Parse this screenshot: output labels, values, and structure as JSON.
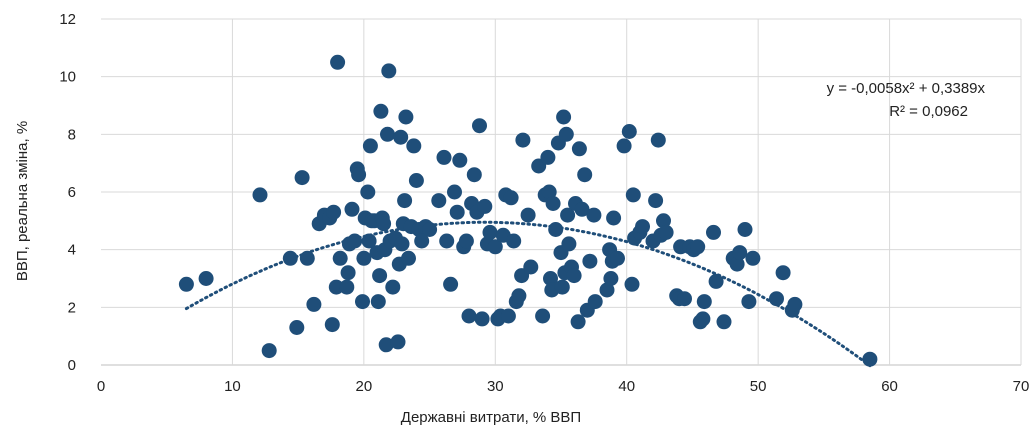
{
  "colors": {
    "point": "#1f4e79",
    "trend": "#1f4e79",
    "grid": "#d9d9d9"
  },
  "chart_data": {
    "type": "scatter",
    "title": "",
    "xlabel": "Державні витрати, % ВВП",
    "ylabel": "ВВП, реальна зміна, %",
    "xlim": [
      0,
      70
    ],
    "ylim": [
      0,
      12
    ],
    "xticks": [
      0,
      10,
      20,
      30,
      40,
      50,
      60,
      70
    ],
    "yticks": [
      0,
      2,
      4,
      6,
      8,
      10,
      12
    ],
    "xtick_labels": [
      "0",
      "10",
      "20",
      "30",
      "40",
      "50",
      "60",
      "70"
    ],
    "ytick_labels": [
      "0",
      "2",
      "4",
      "6",
      "8",
      "10",
      "12"
    ],
    "grid": true,
    "trendline": {
      "type": "polynomial-2",
      "a": -0.0058,
      "b": 0.3389,
      "x_range": [
        6.5,
        58.5
      ],
      "style": "dotted",
      "equation_text": "y = -0,0058x² + 0,3389x",
      "r2_text": "R² = 0,0962"
    },
    "points": [
      [
        6.5,
        2.8
      ],
      [
        8.0,
        3.0
      ],
      [
        12.1,
        5.9
      ],
      [
        12.8,
        0.5
      ],
      [
        14.4,
        3.7
      ],
      [
        14.9,
        1.3
      ],
      [
        15.3,
        6.5
      ],
      [
        15.7,
        3.7
      ],
      [
        16.2,
        2.1
      ],
      [
        16.6,
        4.9
      ],
      [
        17.0,
        5.2
      ],
      [
        17.4,
        5.1
      ],
      [
        17.6,
        1.4
      ],
      [
        17.7,
        5.3
      ],
      [
        17.9,
        2.7
      ],
      [
        18.0,
        10.5
      ],
      [
        18.2,
        3.7
      ],
      [
        18.7,
        2.7
      ],
      [
        18.8,
        3.2
      ],
      [
        18.9,
        4.2
      ],
      [
        19.1,
        5.4
      ],
      [
        19.3,
        4.3
      ],
      [
        19.5,
        6.8
      ],
      [
        19.6,
        6.6
      ],
      [
        19.9,
        2.2
      ],
      [
        20.0,
        3.7
      ],
      [
        20.1,
        5.1
      ],
      [
        20.3,
        6.0
      ],
      [
        20.4,
        4.3
      ],
      [
        20.5,
        7.6
      ],
      [
        20.6,
        5.0
      ],
      [
        20.8,
        5.0
      ],
      [
        21.0,
        3.9
      ],
      [
        21.1,
        2.2
      ],
      [
        21.2,
        3.1
      ],
      [
        21.3,
        8.8
      ],
      [
        21.4,
        5.1
      ],
      [
        21.5,
        4.9
      ],
      [
        21.6,
        4.0
      ],
      [
        21.7,
        0.7
      ],
      [
        21.8,
        8.0
      ],
      [
        21.9,
        10.2
      ],
      [
        22.0,
        4.3
      ],
      [
        22.2,
        2.7
      ],
      [
        22.4,
        4.4
      ],
      [
        22.6,
        0.8
      ],
      [
        22.7,
        3.5
      ],
      [
        22.8,
        7.9
      ],
      [
        22.9,
        4.2
      ],
      [
        23.0,
        4.9
      ],
      [
        23.1,
        5.7
      ],
      [
        23.2,
        8.6
      ],
      [
        23.4,
        3.7
      ],
      [
        23.6,
        4.8
      ],
      [
        23.8,
        7.6
      ],
      [
        24.0,
        6.4
      ],
      [
        24.2,
        4.7
      ],
      [
        24.4,
        4.3
      ],
      [
        24.7,
        4.8
      ],
      [
        25.0,
        4.7
      ],
      [
        25.7,
        5.7
      ],
      [
        26.1,
        7.2
      ],
      [
        26.3,
        4.3
      ],
      [
        26.6,
        2.8
      ],
      [
        26.9,
        6.0
      ],
      [
        27.1,
        5.3
      ],
      [
        27.3,
        7.1
      ],
      [
        27.6,
        4.1
      ],
      [
        27.8,
        4.3
      ],
      [
        28.0,
        1.7
      ],
      [
        28.2,
        5.6
      ],
      [
        28.4,
        6.6
      ],
      [
        28.6,
        5.3
      ],
      [
        28.8,
        8.3
      ],
      [
        29.0,
        1.6
      ],
      [
        29.2,
        5.5
      ],
      [
        29.4,
        4.2
      ],
      [
        29.6,
        4.6
      ],
      [
        30.0,
        4.1
      ],
      [
        30.2,
        1.6
      ],
      [
        30.4,
        1.7
      ],
      [
        30.6,
        4.5
      ],
      [
        30.8,
        5.9
      ],
      [
        31.0,
        1.7
      ],
      [
        31.2,
        5.8
      ],
      [
        31.4,
        4.3
      ],
      [
        31.6,
        2.2
      ],
      [
        31.8,
        2.4
      ],
      [
        32.0,
        3.1
      ],
      [
        32.1,
        7.8
      ],
      [
        32.5,
        5.2
      ],
      [
        32.7,
        3.4
      ],
      [
        33.3,
        6.9
      ],
      [
        33.6,
        1.7
      ],
      [
        33.8,
        5.9
      ],
      [
        34.0,
        7.2
      ],
      [
        34.1,
        6.0
      ],
      [
        34.2,
        3.0
      ],
      [
        34.3,
        2.6
      ],
      [
        34.4,
        5.6
      ],
      [
        34.6,
        4.7
      ],
      [
        34.8,
        7.7
      ],
      [
        35.0,
        3.9
      ],
      [
        35.1,
        2.7
      ],
      [
        35.2,
        8.6
      ],
      [
        35.3,
        3.2
      ],
      [
        35.4,
        8.0
      ],
      [
        35.5,
        5.2
      ],
      [
        35.6,
        4.2
      ],
      [
        35.8,
        3.4
      ],
      [
        36.0,
        3.1
      ],
      [
        36.1,
        5.6
      ],
      [
        36.3,
        1.5
      ],
      [
        36.4,
        7.5
      ],
      [
        36.6,
        5.4
      ],
      [
        36.8,
        6.6
      ],
      [
        37.0,
        1.9
      ],
      [
        37.2,
        3.6
      ],
      [
        37.5,
        5.2
      ],
      [
        37.6,
        2.2
      ],
      [
        38.5,
        2.6
      ],
      [
        38.7,
        4.0
      ],
      [
        38.8,
        3.0
      ],
      [
        38.9,
        3.6
      ],
      [
        39.0,
        5.1
      ],
      [
        39.3,
        3.7
      ],
      [
        39.8,
        7.6
      ],
      [
        40.2,
        8.1
      ],
      [
        40.4,
        2.8
      ],
      [
        40.5,
        5.9
      ],
      [
        40.6,
        4.4
      ],
      [
        41.0,
        4.6
      ],
      [
        41.2,
        4.8
      ],
      [
        42.0,
        4.3
      ],
      [
        42.2,
        5.7
      ],
      [
        42.4,
        7.8
      ],
      [
        42.6,
        4.5
      ],
      [
        42.8,
        5.0
      ],
      [
        43.0,
        4.6
      ],
      [
        43.8,
        2.4
      ],
      [
        44.0,
        2.3
      ],
      [
        44.1,
        4.1
      ],
      [
        44.4,
        2.3
      ],
      [
        44.8,
        4.1
      ],
      [
        45.1,
        4.0
      ],
      [
        45.4,
        4.1
      ],
      [
        45.6,
        1.5
      ],
      [
        45.8,
        1.6
      ],
      [
        45.9,
        2.2
      ],
      [
        46.6,
        4.6
      ],
      [
        46.8,
        2.9
      ],
      [
        47.4,
        1.5
      ],
      [
        48.1,
        3.7
      ],
      [
        48.4,
        3.5
      ],
      [
        48.6,
        3.9
      ],
      [
        49.0,
        4.7
      ],
      [
        49.3,
        2.2
      ],
      [
        49.6,
        3.7
      ],
      [
        51.4,
        2.3
      ],
      [
        51.9,
        3.2
      ],
      [
        52.6,
        1.9
      ],
      [
        52.8,
        2.1
      ],
      [
        58.5,
        0.2
      ]
    ]
  }
}
